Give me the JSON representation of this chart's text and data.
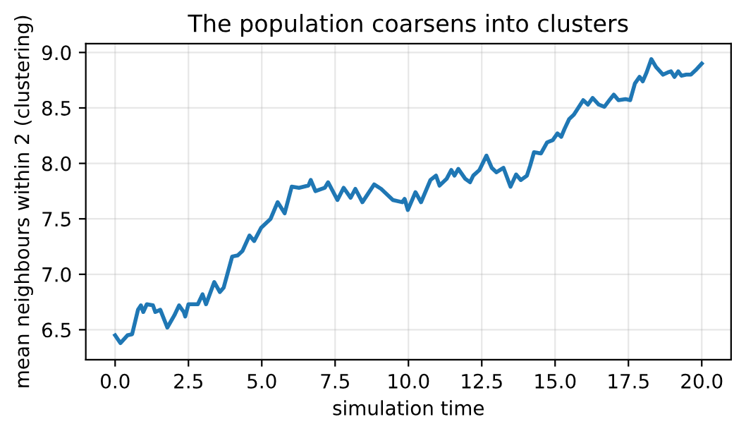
{
  "chart_data": {
    "type": "line",
    "title": "The population coarsens into clusters",
    "xlabel": "simulation time",
    "ylabel": "mean neighbours within 2 (clustering)",
    "xlim": [
      -1,
      21
    ],
    "ylim": [
      6.23,
      9.08
    ],
    "xticks": [
      {
        "value": 0,
        "label": "0.0"
      },
      {
        "value": 2.5,
        "label": "2.5"
      },
      {
        "value": 5,
        "label": "5.0"
      },
      {
        "value": 7.5,
        "label": "7.5"
      },
      {
        "value": 10,
        "label": "10.0"
      },
      {
        "value": 12.5,
        "label": "12.5"
      },
      {
        "value": 15,
        "label": "15.0"
      },
      {
        "value": 17.5,
        "label": "17.5"
      },
      {
        "value": 20,
        "label": "20.0"
      }
    ],
    "yticks": [
      {
        "value": 6.5,
        "label": "6.5"
      },
      {
        "value": 7,
        "label": "7.0"
      },
      {
        "value": 7.5,
        "label": "7.5"
      },
      {
        "value": 8,
        "label": "8.0"
      },
      {
        "value": 8.5,
        "label": "8.5"
      },
      {
        "value": 9,
        "label": "9.0"
      }
    ],
    "grid": true,
    "marker": "none",
    "line_style": "solid",
    "x": [
      0,
      0.18,
      0.42,
      0.58,
      0.78,
      0.88,
      0.96,
      1.08,
      1.29,
      1.37,
      1.54,
      1.78,
      2.02,
      2.18,
      2.34,
      2.39,
      2.5,
      2.82,
      2.98,
      3.1,
      3.38,
      3.57,
      3.7,
      3.99,
      4.18,
      4.34,
      4.58,
      4.74,
      4.98,
      5.3,
      5.54,
      5.78,
      6.02,
      6.27,
      6.59,
      6.67,
      6.83,
      7.15,
      7.26,
      7.58,
      7.79,
      8.03,
      8.19,
      8.43,
      8.83,
      9.07,
      9.47,
      9.79,
      9.87,
      9.98,
      10.24,
      10.43,
      10.75,
      10.94,
      11.06,
      11.3,
      11.46,
      11.57,
      11.7,
      11.94,
      12.1,
      12.21,
      12.42,
      12.66,
      12.84,
      13.0,
      13.24,
      13.48,
      13.67,
      13.83,
      14.04,
      14.15,
      14.28,
      14.52,
      14.73,
      14.92,
      15.08,
      15.21,
      15.32,
      15.48,
      15.64,
      15.96,
      16.12,
      16.28,
      16.49,
      16.68,
      16.88,
      17.0,
      17.16,
      17.4,
      17.56,
      17.72,
      17.88,
      17.99,
      18.12,
      18.28,
      18.44,
      18.68,
      18.84,
      18.95,
      19.07,
      19.2,
      19.31,
      19.47,
      19.63,
      19.79,
      20.0
    ],
    "series": [
      {
        "color": "#1f77b4",
        "values": [
          6.45,
          6.38,
          6.45,
          6.46,
          6.68,
          6.72,
          6.66,
          6.73,
          6.72,
          6.66,
          6.68,
          6.52,
          6.63,
          6.72,
          6.66,
          6.62,
          6.73,
          6.73,
          6.82,
          6.73,
          6.93,
          6.84,
          6.88,
          7.16,
          7.17,
          7.21,
          7.35,
          7.3,
          7.42,
          7.5,
          7.65,
          7.55,
          7.79,
          7.78,
          7.8,
          7.85,
          7.75,
          7.78,
          7.83,
          7.67,
          7.78,
          7.69,
          7.77,
          7.65,
          7.81,
          7.77,
          7.67,
          7.65,
          7.68,
          7.58,
          7.74,
          7.65,
          7.85,
          7.89,
          7.8,
          7.86,
          7.94,
          7.89,
          7.95,
          7.86,
          7.83,
          7.89,
          7.94,
          8.07,
          7.96,
          7.92,
          7.96,
          7.79,
          7.9,
          7.85,
          7.89,
          7.98,
          8.1,
          8.09,
          8.19,
          8.21,
          8.27,
          8.24,
          8.31,
          8.4,
          8.44,
          8.57,
          8.53,
          8.59,
          8.53,
          8.51,
          8.58,
          8.62,
          8.57,
          8.58,
          8.57,
          8.72,
          8.78,
          8.74,
          8.82,
          8.94,
          8.87,
          8.8,
          8.82,
          8.83,
          8.78,
          8.83,
          8.79,
          8.8,
          8.8,
          8.84,
          8.9
        ]
      }
    ]
  }
}
